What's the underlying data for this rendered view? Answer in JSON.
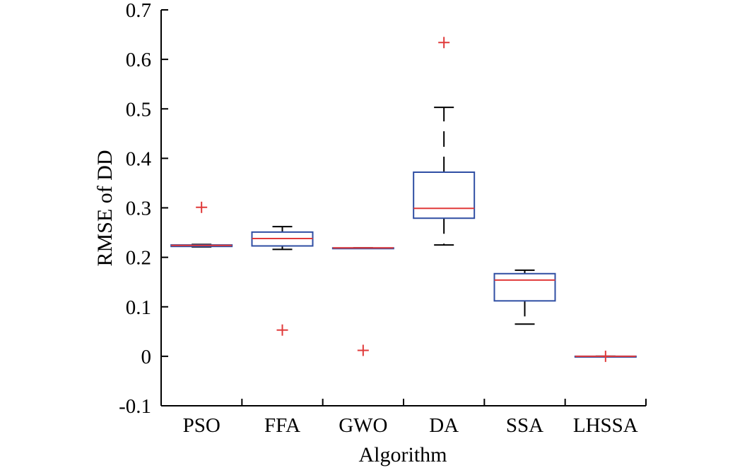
{
  "chart_data": {
    "type": "box",
    "xlabel": "Algorithm",
    "ylabel": "RMSE of DD",
    "ylim": [
      -0.1,
      0.7
    ],
    "yticks": [
      -0.1,
      0,
      0.1,
      0.2,
      0.3,
      0.4,
      0.5,
      0.6,
      0.7
    ],
    "ytick_labels": [
      "-0.1",
      "0",
      "0.1",
      "0.2",
      "0.3",
      "0.4",
      "0.5",
      "0.6",
      "0.7"
    ],
    "categories": [
      "PSO",
      "FFA",
      "GWO",
      "DA",
      "SSA",
      "LHSSA"
    ],
    "boxes": [
      {
        "name": "PSO",
        "whisker_low": 0.221,
        "q1": 0.222,
        "median": 0.224,
        "q3": 0.225,
        "whisker_high": 0.226,
        "outliers": [
          0.301
        ]
      },
      {
        "name": "FFA",
        "whisker_low": 0.216,
        "q1": 0.223,
        "median": 0.238,
        "q3": 0.251,
        "whisker_high": 0.262,
        "outliers": [
          0.053
        ]
      },
      {
        "name": "GWO",
        "whisker_low": 0.219,
        "q1": 0.219,
        "median": 0.219,
        "q3": 0.219,
        "whisker_high": 0.219,
        "outliers": [
          0.012
        ]
      },
      {
        "name": "DA",
        "whisker_low": 0.225,
        "q1": 0.279,
        "median": 0.299,
        "q3": 0.372,
        "whisker_high": 0.503,
        "outliers": [
          0.634
        ]
      },
      {
        "name": "SSA",
        "whisker_low": 0.065,
        "q1": 0.112,
        "median": 0.154,
        "q3": 0.167,
        "whisker_high": 0.174,
        "outliers": []
      },
      {
        "name": "LHSSA",
        "whisker_low": 0.0,
        "q1": 0.0,
        "median": 0.0,
        "q3": 0.0,
        "whisker_high": 0.0,
        "outliers": [
          0.0
        ]
      }
    ],
    "colors": {
      "box": "#2f4ea3",
      "median": "#e03a3a",
      "whisker": "#000000",
      "outlier": "#e03a3a",
      "axis": "#000000"
    }
  }
}
